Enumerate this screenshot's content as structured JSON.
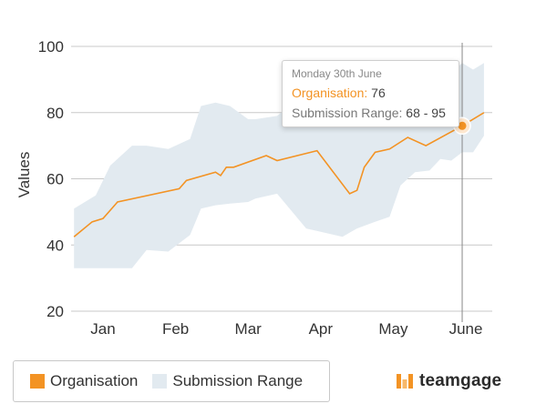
{
  "chart_data": {
    "type": "line",
    "ylabel": "Values",
    "xlabel": "",
    "ylim": [
      20,
      100
    ],
    "yticks": [
      20,
      40,
      60,
      80,
      100
    ],
    "grid": true,
    "months": [
      "Jan",
      "Feb",
      "Mar",
      "Apr",
      "May",
      "June"
    ],
    "month_positions": [
      1,
      2,
      3,
      4,
      5,
      6
    ],
    "series": [
      {
        "name": "Organisation",
        "color": "#f39324",
        "x": [
          0.6,
          0.85,
          1.0,
          1.2,
          2.05,
          2.15,
          2.55,
          2.62,
          2.7,
          2.8,
          3.25,
          3.4,
          3.95,
          4.4,
          4.5,
          4.6,
          4.75,
          4.95,
          5.2,
          5.45,
          5.95,
          6.25
        ],
        "y": [
          42.5,
          47,
          48,
          53,
          57,
          59.5,
          62,
          61,
          63.5,
          63.5,
          67,
          65.5,
          68.5,
          55.5,
          56.5,
          63.5,
          68,
          69,
          72.5,
          70,
          76,
          80
        ]
      },
      {
        "name": "Submission Range",
        "type": "range",
        "color": "#e2eaf0",
        "x": [
          0.6,
          0.9,
          1.1,
          1.4,
          1.6,
          1.9,
          2.2,
          2.35,
          2.55,
          2.75,
          3.0,
          3.1,
          3.4,
          3.8,
          4.3,
          4.5,
          4.75,
          4.95,
          5.1,
          5.3,
          5.5,
          5.65,
          5.8,
          5.95,
          6.1,
          6.25
        ],
        "low": [
          33,
          33,
          33,
          33,
          38.5,
          38,
          43,
          51,
          52,
          52.5,
          53,
          54,
          55.5,
          45,
          42.5,
          45,
          47,
          48.5,
          58,
          62,
          62.5,
          66,
          65.5,
          68,
          68,
          73
        ],
        "high": [
          51,
          55,
          64,
          70,
          70,
          69,
          72,
          82,
          83,
          82,
          78,
          78,
          79,
          86,
          88,
          88,
          89,
          91,
          93,
          94,
          91,
          92,
          92,
          95,
          93,
          95
        ]
      }
    ],
    "highlight": {
      "x": 5.95,
      "y": 76
    }
  },
  "tooltip": {
    "date": "Monday 30th June",
    "series_label": "Organisation",
    "series_value": "76",
    "range_label": "Submission Range",
    "range_value": "68 - 95"
  },
  "legend": {
    "items": [
      {
        "label": "Organisation",
        "color": "#f39324"
      },
      {
        "label": "Submission Range",
        "color": "#e2eaf0"
      }
    ]
  },
  "brand": {
    "name": "teamgage",
    "color": "#f39324"
  }
}
